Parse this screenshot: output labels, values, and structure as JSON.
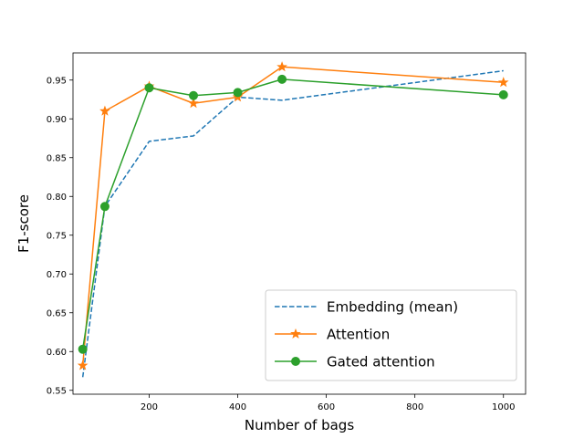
{
  "chart_data": {
    "type": "line",
    "xlabel": "Number of bags",
    "ylabel": "F1-score",
    "xlim": [
      28,
      1050
    ],
    "ylim": [
      0.545,
      0.985
    ],
    "xticks": [
      200,
      400,
      600,
      800,
      1000
    ],
    "yticks": [
      0.55,
      0.6,
      0.65,
      0.7,
      0.75,
      0.8,
      0.85,
      0.9,
      0.95
    ],
    "grid": false,
    "legend_position": "lower-right",
    "series": [
      {
        "name": "Embedding (mean)",
        "color": "#1f77b4",
        "style": "dashed",
        "marker": "none",
        "x": [
          50,
          100,
          200,
          300,
          400,
          500,
          1000
        ],
        "y": [
          0.567,
          0.787,
          0.871,
          0.878,
          0.928,
          0.924,
          0.962
        ]
      },
      {
        "name": "Attention",
        "color": "#ff7f0e",
        "style": "solid",
        "marker": "star",
        "x": [
          50,
          100,
          200,
          300,
          400,
          500,
          1000
        ],
        "y": [
          0.582,
          0.91,
          0.942,
          0.92,
          0.928,
          0.967,
          0.947
        ]
      },
      {
        "name": "Gated attention",
        "color": "#2ca02c",
        "style": "solid",
        "marker": "circle",
        "x": [
          50,
          100,
          200,
          300,
          400,
          500,
          1000
        ],
        "y": [
          0.603,
          0.787,
          0.94,
          0.93,
          0.934,
          0.951,
          0.931
        ]
      }
    ]
  }
}
